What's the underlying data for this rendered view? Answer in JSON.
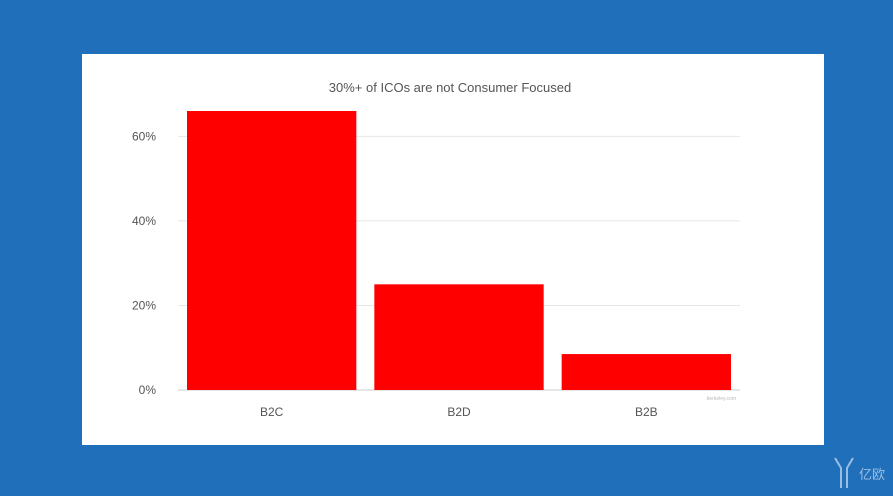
{
  "chart_data": {
    "type": "bar",
    "title": "30%+ of ICOs are not Consumer Focused",
    "categories": [
      "B2C",
      "B2D",
      "B2B"
    ],
    "values": [
      66,
      25,
      8.5
    ],
    "ylim": [
      0,
      66
    ],
    "yticks": [
      0,
      20,
      40,
      60
    ],
    "ytick_labels": [
      "0%",
      "20%",
      "40%",
      "60%"
    ],
    "bar_color": "#ff0000",
    "grid": true,
    "legend": "none",
    "credit": "berkeley.com"
  },
  "colors": {
    "background": "#1f6fbb",
    "card": "#ffffff"
  },
  "watermark": {
    "icon": "yiou-logo-icon",
    "text": "亿欧"
  }
}
